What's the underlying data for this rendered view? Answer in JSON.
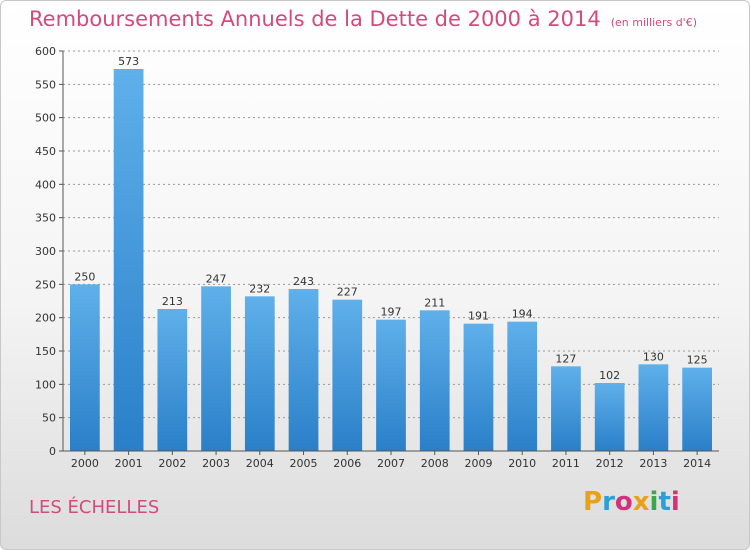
{
  "title": "Remboursements Annuels de la Dette de 2000 à 2014",
  "unit": "(en milliers d'€)",
  "commune": "LES ÉCHELLES",
  "logo": {
    "letters": [
      "P",
      "r",
      "o",
      "x",
      "i",
      "t",
      "i"
    ],
    "colors": [
      "#e8a21a",
      "#2aa0d8",
      "#d2327a",
      "#e8a21a",
      "#3aa84a",
      "#2aa0d8",
      "#d2327a"
    ]
  },
  "colors": {
    "title": "#d34a7b",
    "bar_top": "#5fb0ea",
    "bar_bottom": "#2a7fc8",
    "grid": "#999999"
  },
  "chart_data": {
    "type": "bar",
    "title": "Remboursements Annuels de la Dette de 2000 à 2014",
    "xlabel": "",
    "ylabel": "",
    "ylim": [
      0,
      600
    ],
    "yticks": [
      0,
      50,
      100,
      150,
      200,
      250,
      300,
      350,
      400,
      450,
      500,
      550,
      600
    ],
    "grid": "horizontal dashed",
    "categories": [
      "2000",
      "2001",
      "2002",
      "2003",
      "2004",
      "2005",
      "2006",
      "2007",
      "2008",
      "2009",
      "2010",
      "2011",
      "2012",
      "2013",
      "2014"
    ],
    "values": [
      250,
      573,
      213,
      247,
      232,
      243,
      227,
      197,
      211,
      191,
      194,
      127,
      102,
      130,
      125
    ]
  }
}
